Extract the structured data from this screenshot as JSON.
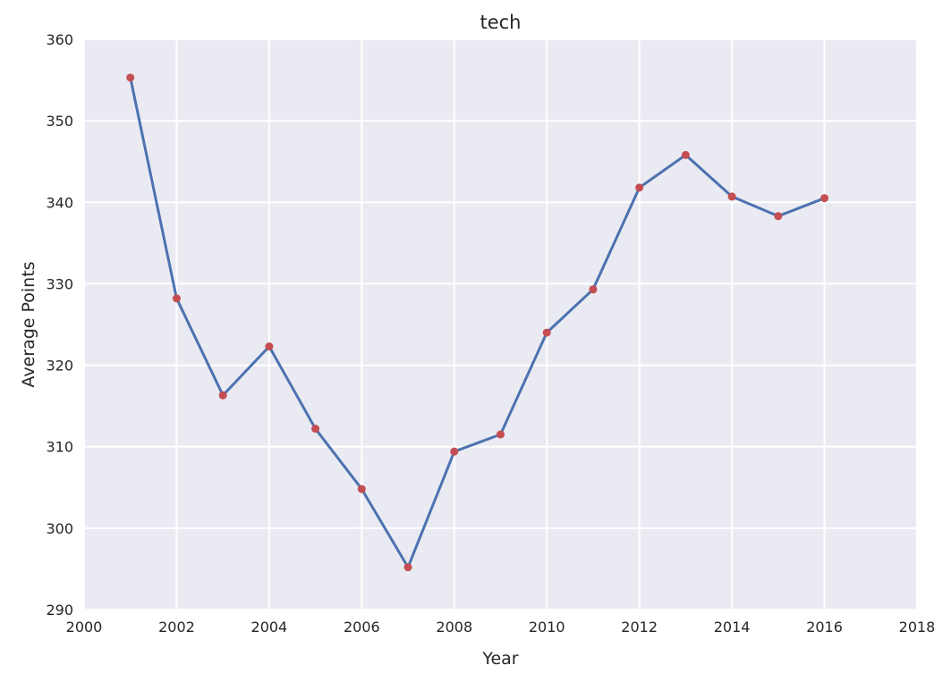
{
  "chart_data": {
    "type": "line",
    "title": "tech",
    "xlabel": "Year",
    "ylabel": "Average Points",
    "xlim": [
      2000,
      2018
    ],
    "ylim": [
      290,
      360
    ],
    "xticks": [
      "2000",
      "2002",
      "2004",
      "2006",
      "2008",
      "2010",
      "2012",
      "2014",
      "2016",
      "2018"
    ],
    "yticks": [
      "290",
      "300",
      "310",
      "320",
      "330",
      "340",
      "350",
      "360"
    ],
    "grid": true,
    "series": [
      {
        "x": [
          2001,
          2002,
          2003,
          2004,
          2005,
          2006,
          2007,
          2008,
          2009,
          2010,
          2011,
          2012,
          2013,
          2014,
          2015,
          2016
        ],
        "y": [
          355.3,
          328.2,
          316.3,
          322.3,
          312.2,
          304.8,
          295.2,
          309.4,
          311.5,
          324.0,
          329.3,
          341.8,
          345.8,
          340.7,
          338.3,
          340.5
        ],
        "line_color": "#4c72b0",
        "marker_color": "#c44e52"
      }
    ],
    "colors": {
      "plot_background": "#eaeaf2",
      "grid": "#ffffff",
      "text": "#262626"
    }
  }
}
